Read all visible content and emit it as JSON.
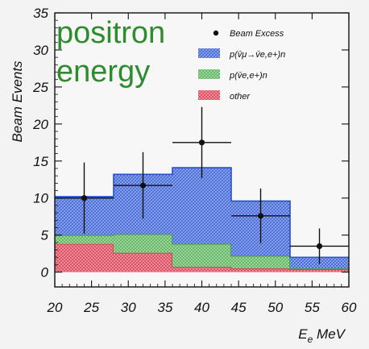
{
  "chart_data": {
    "type": "bar",
    "title": "",
    "annotation": [
      "positron",
      "energy"
    ],
    "ylabel": "Beam Events",
    "xlabel": "E",
    "xlabel_subscript": "e",
    "xlabel_unit": "MeV",
    "xlim": [
      20,
      60
    ],
    "ylim": [
      -2,
      35
    ],
    "xticks": [
      20,
      25,
      30,
      35,
      40,
      45,
      50,
      55,
      60
    ],
    "yticks": [
      0,
      5,
      10,
      15,
      20,
      25,
      30,
      35
    ],
    "bin_edges": [
      20,
      28,
      36,
      44,
      52,
      60
    ],
    "stack": [
      {
        "name": "other",
        "color": "#e06a78",
        "values": [
          3.8,
          2.6,
          0.7,
          0.5,
          0.4
        ]
      },
      {
        "name": "p(v̄e,e+)n",
        "color": "#8fcf8f",
        "values": [
          1.2,
          2.5,
          3.1,
          1.7,
          0.1
        ]
      },
      {
        "name": "p(v̄μ→v̄e,e+)n",
        "color": "#6f8fe0",
        "values": [
          5.2,
          8.1,
          10.3,
          7.4,
          1.5
        ]
      }
    ],
    "beam_excess": {
      "name": "Beam Excess",
      "x": [
        24,
        32,
        40,
        48,
        56
      ],
      "y": [
        10.0,
        11.7,
        17.5,
        7.6,
        3.5
      ],
      "yerr": [
        4.8,
        4.5,
        4.8,
        3.7,
        2.4
      ],
      "xerr": [
        4,
        4,
        4,
        4,
        4
      ]
    },
    "legend": [
      {
        "label": "Beam Excess",
        "kind": "point"
      },
      {
        "label": "p(v̄μ→v̄e,e+)n",
        "kind": "box",
        "color": "#6f8fe0"
      },
      {
        "label": "p(v̄e,e+)n",
        "kind": "box",
        "color": "#8fcf8f"
      },
      {
        "label": "other",
        "kind": "box",
        "color": "#e06a78"
      }
    ],
    "legend_position": "top-right",
    "grid": false
  }
}
